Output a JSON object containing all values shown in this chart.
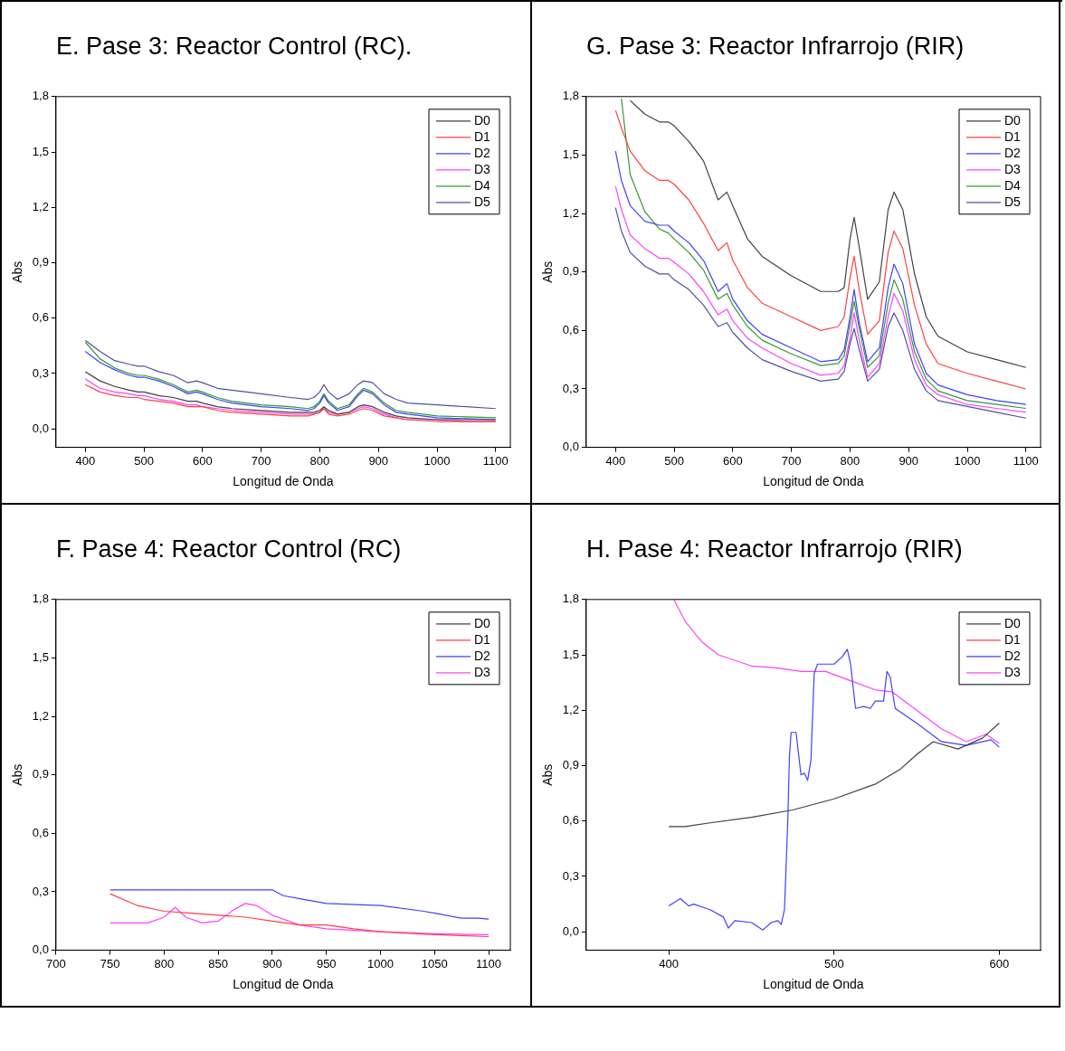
{
  "chart_data": [
    {
      "type": "line",
      "title": "E. Pase 3: Reactor Control (RC).",
      "xlabel": "Longitud de Onda",
      "ylabel": "Abs",
      "legend": "top right",
      "xlim": [
        350,
        1125
      ],
      "xticks": [
        400,
        500,
        600,
        700,
        800,
        900,
        1000,
        1100
      ],
      "ylim": [
        -0.1,
        1.8
      ],
      "yticks": [
        {
          "value": 0,
          "label": "0,0"
        },
        {
          "value": 0.3,
          "label": "0,3"
        },
        {
          "value": 0.6,
          "label": "0,6"
        },
        {
          "value": 0.9,
          "label": "0,9"
        },
        {
          "value": 1.2,
          "label": "1,2"
        },
        {
          "value": 1.5,
          "label": "1,5"
        },
        {
          "value": 1.8,
          "label": "1,8"
        }
      ],
      "x": [
        400,
        425,
        450,
        475,
        490,
        500,
        525,
        550,
        575,
        590,
        600,
        625,
        650,
        700,
        750,
        780,
        790,
        800,
        807,
        815,
        830,
        850,
        865,
        875,
        890,
        910,
        930,
        950,
        1000,
        1050,
        1100
      ],
      "series": [
        {
          "name": "D0",
          "color": "#404040",
          "values": [
            0.31,
            0.26,
            0.23,
            0.21,
            0.2,
            0.2,
            0.18,
            0.17,
            0.15,
            0.15,
            0.14,
            0.12,
            0.11,
            0.1,
            0.09,
            0.09,
            0.09,
            0.1,
            0.12,
            0.1,
            0.08,
            0.09,
            0.12,
            0.13,
            0.12,
            0.09,
            0.07,
            0.06,
            0.05,
            0.05,
            0.05
          ]
        },
        {
          "name": "D1",
          "color": "#ff4040",
          "values": [
            0.24,
            0.2,
            0.18,
            0.17,
            0.17,
            0.16,
            0.15,
            0.14,
            0.12,
            0.12,
            0.12,
            0.1,
            0.09,
            0.08,
            0.07,
            0.07,
            0.08,
            0.09,
            0.11,
            0.08,
            0.07,
            0.08,
            0.1,
            0.11,
            0.1,
            0.07,
            0.06,
            0.05,
            0.04,
            0.04,
            0.04
          ]
        },
        {
          "name": "D2",
          "color": "#4040ff",
          "values": [
            0.42,
            0.36,
            0.32,
            0.29,
            0.28,
            0.28,
            0.26,
            0.23,
            0.19,
            0.2,
            0.19,
            0.16,
            0.14,
            0.12,
            0.11,
            0.1,
            0.11,
            0.14,
            0.18,
            0.14,
            0.1,
            0.12,
            0.18,
            0.21,
            0.19,
            0.13,
            0.09,
            0.08,
            0.06,
            0.055,
            0.05
          ]
        },
        {
          "name": "D3",
          "color": "#ff40ff",
          "values": [
            0.27,
            0.22,
            0.2,
            0.19,
            0.18,
            0.18,
            0.16,
            0.15,
            0.13,
            0.13,
            0.12,
            0.11,
            0.1,
            0.09,
            0.08,
            0.08,
            0.08,
            0.09,
            0.11,
            0.09,
            0.08,
            0.09,
            0.11,
            0.12,
            0.11,
            0.08,
            0.06,
            0.05,
            0.05,
            0.04,
            0.04
          ]
        },
        {
          "name": "D4",
          "color": "#339933",
          "values": [
            0.47,
            0.38,
            0.33,
            0.3,
            0.29,
            0.29,
            0.27,
            0.24,
            0.2,
            0.21,
            0.2,
            0.17,
            0.15,
            0.13,
            0.12,
            0.11,
            0.12,
            0.15,
            0.19,
            0.15,
            0.11,
            0.13,
            0.19,
            0.22,
            0.2,
            0.14,
            0.1,
            0.09,
            0.07,
            0.065,
            0.06
          ]
        },
        {
          "name": "D5",
          "color": "#5050a0",
          "values": [
            0.48,
            0.42,
            0.37,
            0.35,
            0.34,
            0.34,
            0.31,
            0.29,
            0.25,
            0.26,
            0.25,
            0.22,
            0.21,
            0.19,
            0.17,
            0.16,
            0.17,
            0.2,
            0.24,
            0.2,
            0.16,
            0.19,
            0.24,
            0.26,
            0.25,
            0.19,
            0.16,
            0.14,
            0.13,
            0.12,
            0.11
          ]
        }
      ]
    },
    {
      "type": "line",
      "title": "G. Pase 3: Reactor Infrarrojo (RIR)",
      "xlabel": "Longitud de Onda",
      "ylabel": "Abs",
      "legend": "top right",
      "xlim": [
        350,
        1125
      ],
      "xticks": [
        400,
        500,
        600,
        700,
        800,
        900,
        1000,
        1100
      ],
      "ylim": [
        0,
        1.8
      ],
      "yticks": [
        {
          "value": 0,
          "label": "0,0"
        },
        {
          "value": 0.3,
          "label": "0,3"
        },
        {
          "value": 0.6,
          "label": "0,6"
        },
        {
          "value": 0.9,
          "label": "0,9"
        },
        {
          "value": 1.2,
          "label": "1,2"
        },
        {
          "value": 1.5,
          "label": "1,5"
        },
        {
          "value": 1.8,
          "label": "1,8"
        }
      ],
      "x": [
        400,
        410,
        425,
        450,
        475,
        490,
        500,
        525,
        550,
        575,
        590,
        600,
        625,
        650,
        700,
        750,
        780,
        790,
        800,
        807,
        815,
        830,
        850,
        865,
        875,
        890,
        910,
        930,
        950,
        1000,
        1050,
        1100
      ],
      "series": [
        {
          "name": "D0",
          "color": "#404040",
          "values": [
            null,
            null,
            1.78,
            1.71,
            1.67,
            1.67,
            1.65,
            1.57,
            1.47,
            1.27,
            1.31,
            1.24,
            1.07,
            0.98,
            0.88,
            0.8,
            0.8,
            0.82,
            1.07,
            1.18,
            1.04,
            0.76,
            0.85,
            1.22,
            1.31,
            1.22,
            0.89,
            0.67,
            0.57,
            0.49,
            0.45,
            0.41
          ]
        },
        {
          "name": "D1",
          "color": "#ff4040",
          "values": [
            1.73,
            1.64,
            1.52,
            1.42,
            1.37,
            1.37,
            1.35,
            1.27,
            1.15,
            1.01,
            1.05,
            0.96,
            0.82,
            0.74,
            0.67,
            0.6,
            0.62,
            0.67,
            0.87,
            0.98,
            0.82,
            0.58,
            0.65,
            1.0,
            1.11,
            1.02,
            0.73,
            0.53,
            0.43,
            0.38,
            0.34,
            0.3
          ]
        },
        {
          "name": "D2",
          "color": "#4040ff",
          "values": [
            1.52,
            1.37,
            1.24,
            1.16,
            1.14,
            1.14,
            1.11,
            1.05,
            0.96,
            0.8,
            0.84,
            0.76,
            0.65,
            0.58,
            0.51,
            0.44,
            0.45,
            0.5,
            0.67,
            0.81,
            0.65,
            0.44,
            0.51,
            0.82,
            0.94,
            0.84,
            0.53,
            0.38,
            0.32,
            0.27,
            0.24,
            0.22
          ]
        },
        {
          "name": "D3",
          "color": "#ff40ff",
          "values": [
            1.34,
            1.22,
            1.09,
            1.02,
            0.97,
            0.97,
            0.95,
            0.89,
            0.8,
            0.68,
            0.71,
            0.65,
            0.56,
            0.51,
            0.43,
            0.37,
            0.38,
            0.42,
            0.56,
            0.69,
            0.56,
            0.36,
            0.43,
            0.67,
            0.79,
            0.7,
            0.45,
            0.32,
            0.27,
            0.22,
            0.2,
            0.18
          ]
        },
        {
          "name": "D4",
          "color": "#339933",
          "values": [
            null,
            1.79,
            1.4,
            1.21,
            1.12,
            1.1,
            1.07,
            1.0,
            0.91,
            0.76,
            0.79,
            0.73,
            0.62,
            0.55,
            0.48,
            0.42,
            0.43,
            0.47,
            0.63,
            0.75,
            0.62,
            0.41,
            0.47,
            0.74,
            0.86,
            0.76,
            0.49,
            0.35,
            0.29,
            0.24,
            0.22,
            0.2
          ]
        },
        {
          "name": "D5",
          "color": "#5050a0",
          "values": [
            1.23,
            1.11,
            1.0,
            0.93,
            0.89,
            0.89,
            0.86,
            0.81,
            0.73,
            0.62,
            0.64,
            0.59,
            0.51,
            0.45,
            0.39,
            0.34,
            0.35,
            0.39,
            0.53,
            0.61,
            0.51,
            0.34,
            0.4,
            0.62,
            0.69,
            0.6,
            0.4,
            0.29,
            0.24,
            0.21,
            0.18,
            0.15
          ]
        }
      ]
    },
    {
      "type": "line",
      "title": "F. Pase 4: Reactor Control (RC)",
      "xlabel": "Longitud de Onda",
      "ylabel": "Abs",
      "legend": "top right",
      "xlim": [
        700,
        1120
      ],
      "xticks": [
        700,
        750,
        800,
        850,
        900,
        950,
        1000,
        1050,
        1100
      ],
      "ylim": [
        0,
        1.8
      ],
      "yticks": [
        {
          "value": 0,
          "label": "0,0"
        },
        {
          "value": 0.3,
          "label": "0,3"
        },
        {
          "value": 0.6,
          "label": "0,6"
        },
        {
          "value": 0.9,
          "label": "0,9"
        },
        {
          "value": 1.2,
          "label": "1,2"
        },
        {
          "value": 1.5,
          "label": "1,5"
        },
        {
          "value": 1.8,
          "label": "1,8"
        }
      ],
      "series": [
        {
          "name": "D0",
          "color": "#404040",
          "values": [
            null
          ]
        },
        {
          "name": "D1",
          "color": "#ff4040",
          "x": [
            750,
            775,
            800,
            825,
            850,
            875,
            900,
            925,
            950,
            975,
            1000,
            1050,
            1100
          ],
          "values": [
            0.29,
            0.23,
            0.2,
            0.19,
            0.18,
            0.17,
            0.15,
            0.13,
            0.13,
            0.11,
            0.095,
            0.08,
            0.07
          ]
        },
        {
          "name": "D2",
          "color": "#4040ff",
          "x": [
            750,
            900,
            910,
            930,
            950,
            1000,
            1040,
            1050,
            1075,
            1090,
            1100
          ],
          "values": [
            0.31,
            0.31,
            0.28,
            0.26,
            0.24,
            0.23,
            0.2,
            0.19,
            0.165,
            0.165,
            0.16
          ]
        },
        {
          "name": "D3",
          "color": "#ff40ff",
          "x": [
            750,
            785,
            800,
            810,
            820,
            835,
            850,
            865,
            875,
            885,
            900,
            925,
            950,
            1000,
            1050,
            1100
          ],
          "values": [
            0.14,
            0.14,
            0.17,
            0.22,
            0.17,
            0.14,
            0.15,
            0.21,
            0.24,
            0.23,
            0.18,
            0.13,
            0.11,
            0.095,
            0.085,
            0.08
          ]
        }
      ]
    },
    {
      "type": "line",
      "title": "H. Pase 4: Reactor Infrarrojo (RIR)",
      "xlabel": "Longitud de Onda",
      "ylabel": "Abs",
      "legend": "top right",
      "xlim": [
        350,
        625
      ],
      "xticks": [
        400,
        500,
        600
      ],
      "ylim": [
        -0.1,
        1.8
      ],
      "yticks": [
        {
          "value": 0,
          "label": "0,0"
        },
        {
          "value": 0.3,
          "label": "0,3"
        },
        {
          "value": 0.6,
          "label": "0,6"
        },
        {
          "value": 0.9,
          "label": "0,9"
        },
        {
          "value": 1.2,
          "label": "1,2"
        },
        {
          "value": 1.5,
          "label": "1,5"
        },
        {
          "value": 1.8,
          "label": "1,8"
        }
      ],
      "series": [
        {
          "name": "D0",
          "color": "#404040",
          "x": [
            400,
            410,
            425,
            450,
            475,
            500,
            525,
            540,
            550,
            560,
            575,
            590,
            600
          ],
          "values": [
            0.57,
            0.57,
            0.59,
            0.62,
            0.66,
            0.72,
            0.8,
            0.88,
            0.96,
            1.03,
            0.99,
            1.05,
            1.13
          ]
        },
        {
          "name": "D1",
          "color": "#ff4040",
          "values": [
            null
          ]
        },
        {
          "name": "D2",
          "color": "#4040ff",
          "x": [
            400,
            407,
            412,
            415,
            425,
            433,
            436,
            440,
            450,
            457,
            462,
            466,
            468,
            470,
            472,
            473,
            474,
            477,
            480,
            482,
            484,
            486,
            488,
            490,
            500,
            505,
            508,
            510,
            513,
            518,
            522,
            525,
            530,
            532,
            534,
            537,
            550,
            565,
            580,
            595,
            600
          ],
          "values": [
            0.14,
            0.18,
            0.14,
            0.15,
            0.12,
            0.08,
            0.02,
            0.06,
            0.05,
            0.01,
            0.05,
            0.06,
            0.04,
            0.12,
            0.6,
            0.95,
            1.08,
            1.08,
            0.85,
            0.86,
            0.82,
            0.93,
            1.4,
            1.45,
            1.45,
            1.49,
            1.53,
            1.45,
            1.21,
            1.22,
            1.21,
            1.25,
            1.25,
            1.41,
            1.38,
            1.21,
            1.13,
            1.03,
            1.01,
            1.04,
            1.0
          ]
        },
        {
          "name": "D3",
          "color": "#ff40ff",
          "x": [
            403,
            410,
            420,
            430,
            450,
            465,
            480,
            495,
            510,
            525,
            535,
            550,
            565,
            580,
            592,
            600
          ],
          "values": [
            1.8,
            1.68,
            1.57,
            1.5,
            1.44,
            1.43,
            1.41,
            1.41,
            1.36,
            1.31,
            1.3,
            1.2,
            1.1,
            1.03,
            1.07,
            1.02
          ]
        }
      ]
    }
  ]
}
